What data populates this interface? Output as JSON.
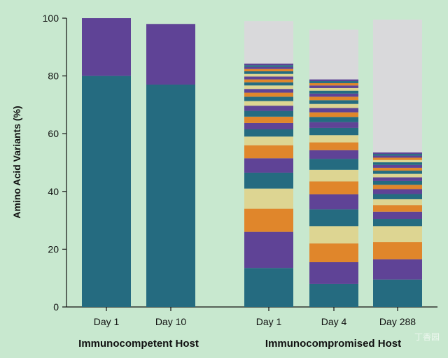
{
  "chart_data": {
    "type": "bar",
    "stacked": true,
    "ylabel": "Amino Acid Variants (%)",
    "ylim": [
      0,
      100
    ],
    "yticks": [
      0,
      20,
      40,
      60,
      80,
      100
    ],
    "categories": [
      "Day 1",
      "Day 10",
      "Day 1",
      "Day 4",
      "Day 288"
    ],
    "groups": [
      {
        "label": "Immunocompetent Host",
        "category_indices": [
          0,
          1
        ]
      },
      {
        "label": "Immunocompromised Host",
        "category_indices": [
          2,
          3,
          4
        ]
      }
    ],
    "colors": {
      "teal": "#256b80",
      "purple": "#5f4396",
      "orange": "#e0862b",
      "khaki": "#ddd592",
      "remainder": "#d9d9db"
    },
    "bars": [
      {
        "segments": [
          {
            "value": 80,
            "color": "teal"
          },
          {
            "value": 20,
            "color": "purple"
          }
        ],
        "remainder": 0
      },
      {
        "segments": [
          {
            "value": 77,
            "color": "teal"
          },
          {
            "value": 21,
            "color": "purple"
          }
        ],
        "remainder": 0
      },
      {
        "segments": [
          {
            "value": 13.5,
            "color": "teal"
          },
          {
            "value": 12.5,
            "color": "purple"
          },
          {
            "value": 8,
            "color": "orange"
          },
          {
            "value": 7,
            "color": "khaki"
          },
          {
            "value": 5.5,
            "color": "teal"
          },
          {
            "value": 5,
            "color": "purple"
          },
          {
            "value": 4.5,
            "color": "orange"
          },
          {
            "value": 3,
            "color": "khaki"
          },
          {
            "value": 2.5,
            "color": "teal"
          },
          {
            "value": 2.2,
            "color": "purple"
          },
          {
            "value": 2.2,
            "color": "orange"
          },
          {
            "value": 2,
            "color": "teal"
          },
          {
            "value": 1.8,
            "color": "purple"
          },
          {
            "value": 1.6,
            "color": "khaki"
          },
          {
            "value": 1.5,
            "color": "teal"
          },
          {
            "value": 1.4,
            "color": "orange"
          },
          {
            "value": 1.3,
            "color": "purple"
          },
          {
            "value": 1.2,
            "color": "khaki"
          },
          {
            "value": 1.1,
            "color": "teal"
          },
          {
            "value": 1,
            "color": "orange"
          },
          {
            "value": 1,
            "color": "purple"
          },
          {
            "value": 0.9,
            "color": "khaki"
          },
          {
            "value": 0.9,
            "color": "teal"
          },
          {
            "value": 0.8,
            "color": "orange"
          },
          {
            "value": 0.7,
            "color": "purple"
          },
          {
            "value": 0.6,
            "color": "teal"
          },
          {
            "value": 0.6,
            "color": "purple"
          }
        ],
        "remainder": 14.7
      },
      {
        "segments": [
          {
            "value": 8,
            "color": "teal"
          },
          {
            "value": 7.5,
            "color": "purple"
          },
          {
            "value": 6.5,
            "color": "orange"
          },
          {
            "value": 6,
            "color": "khaki"
          },
          {
            "value": 5.8,
            "color": "teal"
          },
          {
            "value": 5.2,
            "color": "purple"
          },
          {
            "value": 4.5,
            "color": "orange"
          },
          {
            "value": 4,
            "color": "khaki"
          },
          {
            "value": 3.8,
            "color": "teal"
          },
          {
            "value": 3,
            "color": "purple"
          },
          {
            "value": 2.7,
            "color": "orange"
          },
          {
            "value": 2.5,
            "color": "khaki"
          },
          {
            "value": 2.5,
            "color": "teal"
          },
          {
            "value": 2,
            "color": "purple"
          },
          {
            "value": 1.8,
            "color": "teal"
          },
          {
            "value": 1.6,
            "color": "orange"
          },
          {
            "value": 1.5,
            "color": "purple"
          },
          {
            "value": 1.4,
            "color": "khaki"
          },
          {
            "value": 1.3,
            "color": "teal"
          },
          {
            "value": 1.2,
            "color": "orange"
          },
          {
            "value": 1.1,
            "color": "purple"
          },
          {
            "value": 1,
            "color": "teal"
          },
          {
            "value": 0.9,
            "color": "khaki"
          },
          {
            "value": 0.9,
            "color": "purple"
          },
          {
            "value": 0.8,
            "color": "orange"
          },
          {
            "value": 0.7,
            "color": "teal"
          },
          {
            "value": 0.6,
            "color": "purple"
          }
        ],
        "remainder": 17.2
      },
      {
        "segments": [
          {
            "value": 9.5,
            "color": "teal"
          },
          {
            "value": 7,
            "color": "purple"
          },
          {
            "value": 6,
            "color": "orange"
          },
          {
            "value": 5.5,
            "color": "khaki"
          },
          {
            "value": 2.5,
            "color": "teal"
          },
          {
            "value": 2.5,
            "color": "purple"
          },
          {
            "value": 2.3,
            "color": "orange"
          },
          {
            "value": 2,
            "color": "khaki"
          },
          {
            "value": 1.8,
            "color": "teal"
          },
          {
            "value": 1.7,
            "color": "purple"
          },
          {
            "value": 1.5,
            "color": "orange"
          },
          {
            "value": 1.3,
            "color": "teal"
          },
          {
            "value": 1.3,
            "color": "purple"
          },
          {
            "value": 1.2,
            "color": "khaki"
          },
          {
            "value": 1.1,
            "color": "teal"
          },
          {
            "value": 1,
            "color": "orange"
          },
          {
            "value": 1,
            "color": "purple"
          },
          {
            "value": 0.9,
            "color": "teal"
          },
          {
            "value": 0.8,
            "color": "khaki"
          },
          {
            "value": 0.8,
            "color": "orange"
          },
          {
            "value": 0.7,
            "color": "purple"
          },
          {
            "value": 0.6,
            "color": "teal"
          },
          {
            "value": 0.5,
            "color": "purple"
          }
        ],
        "remainder": 46
      }
    ]
  },
  "watermark": "丁香园"
}
